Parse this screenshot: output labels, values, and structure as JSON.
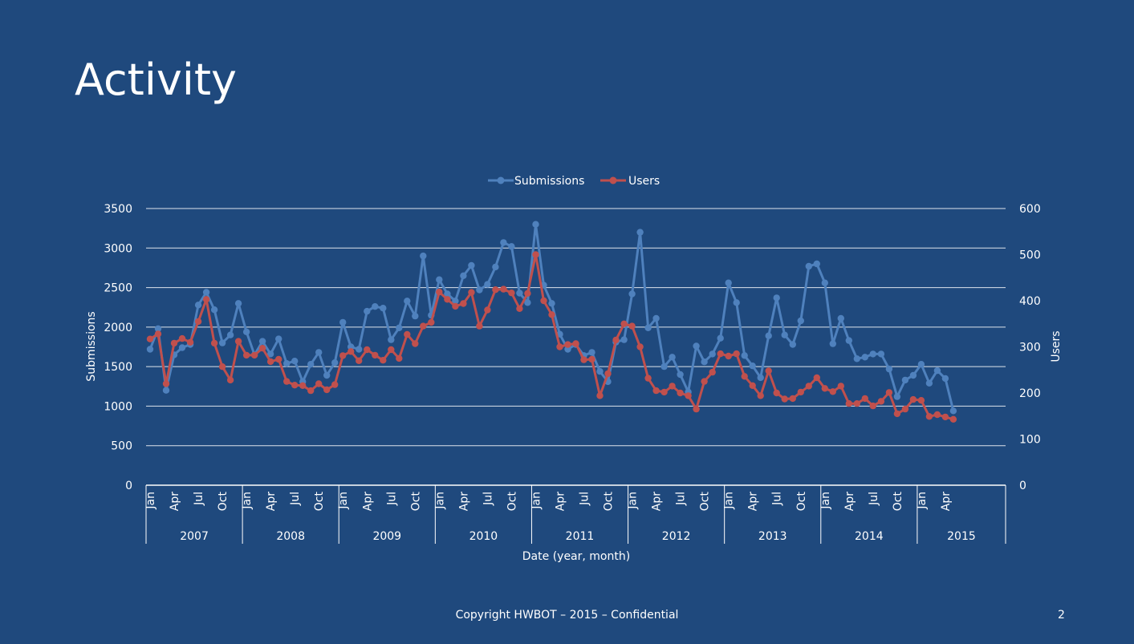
{
  "slide": {
    "title": "Activity",
    "footer": "Copyright HWBOT – 2015 – Confidential",
    "page_number": "2"
  },
  "colors": {
    "background": "#1f497d",
    "submissions": "#4f81bd",
    "users": "#c0504d",
    "grid": "#ffffff",
    "text": "#ffffff"
  },
  "chart_data": {
    "type": "line",
    "title": "",
    "xlabel": "Date (year, month)",
    "ylabel": "Submissions",
    "y2label": "Users",
    "ylim": [
      0,
      3500
    ],
    "y2lim": [
      0,
      600
    ],
    "yticks": [
      0,
      500,
      1000,
      1500,
      2000,
      2500,
      3000,
      3500
    ],
    "y2ticks": [
      0,
      100,
      200,
      300,
      400,
      500,
      600
    ],
    "legend": {
      "position": "top",
      "entries": [
        "Submissions",
        "Users"
      ]
    },
    "grid": true,
    "month_ticks": [
      "Jan",
      "Apr",
      "Jul",
      "Oct"
    ],
    "years": [
      {
        "label": "2007",
        "months": 12
      },
      {
        "label": "2008",
        "months": 12
      },
      {
        "label": "2009",
        "months": 12
      },
      {
        "label": "2010",
        "months": 12
      },
      {
        "label": "2011",
        "months": 12
      },
      {
        "label": "2012",
        "months": 12
      },
      {
        "label": "2013",
        "months": 12
      },
      {
        "label": "2014",
        "months": 12
      },
      {
        "label": "2015",
        "months": 5
      }
    ],
    "series": [
      {
        "name": "Submissions",
        "axis": "left",
        "values": [
          1720,
          1980,
          1200,
          1650,
          1740,
          1780,
          2280,
          2440,
          2220,
          1800,
          1900,
          2300,
          1940,
          1650,
          1820,
          1660,
          1850,
          1540,
          1570,
          1310,
          1530,
          1680,
          1390,
          1550,
          2060,
          1750,
          1720,
          2200,
          2260,
          2240,
          1840,
          1990,
          2330,
          2140,
          2900,
          2150,
          2600,
          2420,
          2330,
          2650,
          2780,
          2470,
          2540,
          2760,
          3070,
          3020,
          2430,
          2310,
          3300,
          2530,
          2300,
          1910,
          1720,
          1780,
          1640,
          1680,
          1440,
          1310,
          1810,
          1840,
          2420,
          3200,
          1990,
          2110,
          1500,
          1620,
          1400,
          1180,
          1760,
          1560,
          1660,
          1860,
          2560,
          2310,
          1640,
          1510,
          1360,
          1890,
          2370,
          1900,
          1780,
          2080,
          2770,
          2800,
          2560,
          1790,
          2110,
          1830,
          1600,
          1620,
          1660,
          1660,
          1470,
          1120,
          1330,
          1390,
          1530,
          1290,
          1450,
          1350,
          940
        ]
      },
      {
        "name": "Users",
        "axis": "right",
        "values": [
          317,
          328,
          220,
          308,
          318,
          310,
          355,
          403,
          308,
          257,
          228,
          312,
          282,
          282,
          297,
          268,
          273,
          225,
          217,
          216,
          205,
          220,
          207,
          218,
          281,
          290,
          270,
          294,
          282,
          271,
          294,
          275,
          327,
          307,
          345,
          353,
          419,
          403,
          388,
          394,
          418,
          345,
          380,
          424,
          425,
          417,
          383,
          416,
          500,
          400,
          370,
          300,
          305,
          307,
          272,
          273,
          194,
          242,
          315,
          350,
          345,
          300,
          232,
          205,
          202,
          215,
          200,
          194,
          165,
          225,
          245,
          285,
          280,
          285,
          236,
          216,
          194,
          248,
          200,
          187,
          188,
          202,
          215,
          233,
          210,
          203,
          215,
          177,
          177,
          188,
          172,
          182,
          201,
          155,
          165,
          186,
          184,
          149,
          153,
          148,
          143
        ]
      }
    ]
  }
}
